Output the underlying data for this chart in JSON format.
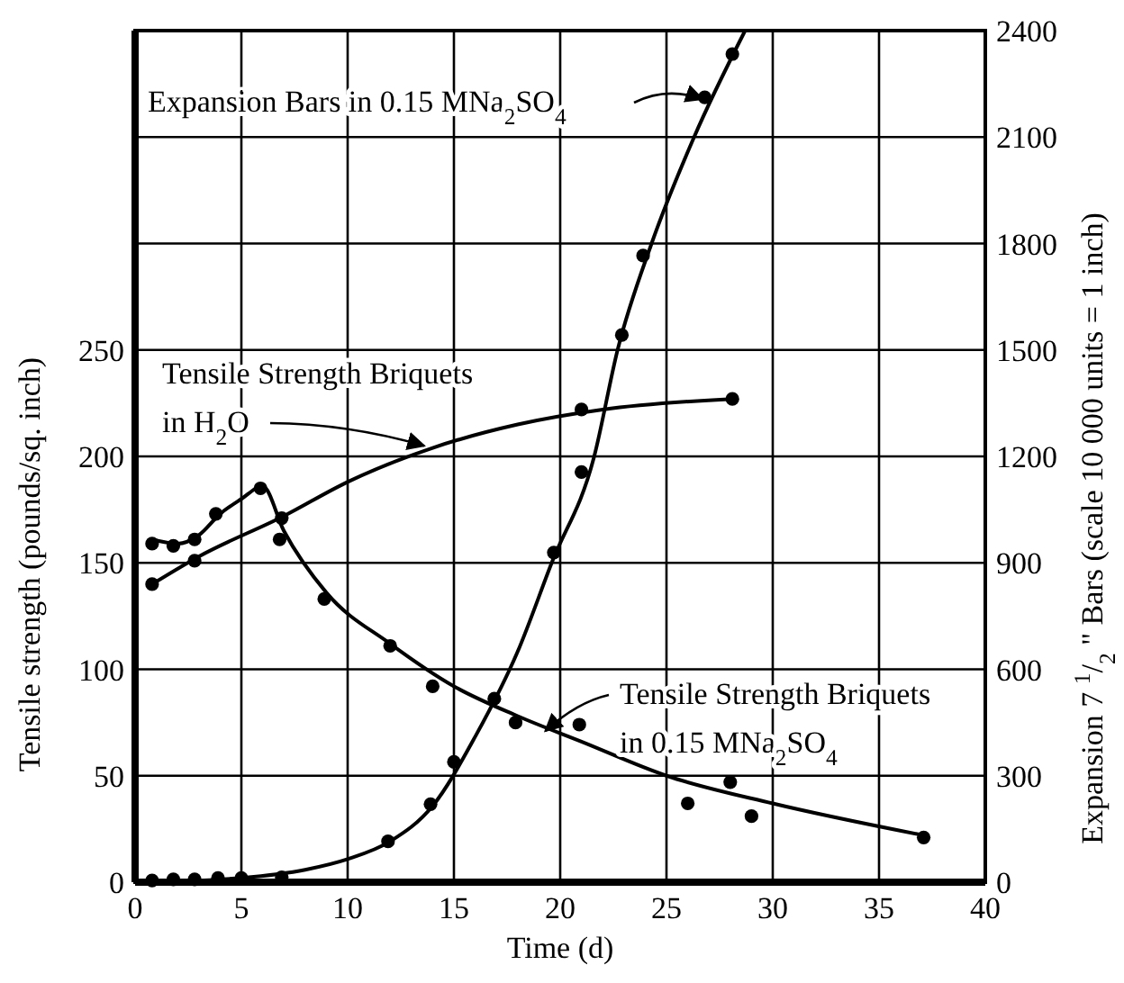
{
  "chart_data": {
    "type": "line",
    "xlabel": "Time (d)",
    "ylabel": "Tensile strength (pounds/sq. inch)",
    "y2label": "Expansion 7 $^{1}$/$_{2}$ \" Bars (scale 10 000 units = 1 inch)",
    "xlim": [
      0,
      40
    ],
    "xticks": [
      0,
      5,
      10,
      15,
      20,
      25,
      30,
      35,
      40
    ],
    "ylim": [
      0,
      400
    ],
    "yticks": [
      0,
      50,
      100,
      150,
      200,
      250,
      {
        "value": 300,
        "label": null
      },
      {
        "value": 350,
        "label": null
      },
      {
        "value": 400,
        "label": null
      }
    ],
    "y2lim": [
      0,
      2400
    ],
    "y2ticks": [
      0,
      300,
      600,
      900,
      1200,
      1500,
      1800,
      2100,
      2400
    ],
    "grid": true,
    "series": [
      {
        "type": "scatter",
        "marker": "circle",
        "color": "#000000",
        "x": [
          0.8,
          1.8,
          2.8,
          3.8,
          5.9,
          6.8,
          8.9,
          12,
          14,
          17.9,
          20.9,
          26,
          28,
          29,
          37.1
        ],
        "values": [
          159,
          158,
          161,
          173,
          185,
          161,
          133,
          111,
          92,
          75,
          74,
          37,
          47,
          31,
          21
        ]
      },
      {
        "type": "line",
        "marker": "none",
        "color": "#000000",
        "x": [
          0.8,
          2,
          3,
          4,
          5,
          6,
          7,
          9,
          12,
          15,
          18,
          21,
          25,
          30,
          37.1
        ],
        "values": [
          161,
          159,
          163,
          173,
          180,
          186,
          165,
          136,
          112,
          92,
          78,
          66,
          50,
          37,
          22
        ]
      },
      {
        "type": "scatter",
        "marker": "circle",
        "color": "#000000",
        "x": [
          0.8,
          2.8,
          6.9,
          21,
          28.1
        ],
        "values": [
          140,
          151,
          171,
          222,
          227
        ]
      },
      {
        "type": "line",
        "marker": "none",
        "color": "#000000",
        "x": [
          0.8,
          3,
          7,
          10,
          14,
          18,
          22,
          28.1
        ],
        "values": [
          140,
          153,
          172,
          188,
          204,
          215,
          222,
          227
        ]
      },
      {
        "type": "scatter",
        "marker": "circle",
        "axis": "y2",
        "color": "#000000",
        "x": [
          0.8,
          1.8,
          2.8,
          3.9,
          5,
          6.9,
          11.9,
          13.9,
          15,
          16.9,
          19.7,
          21,
          22.9,
          23.9,
          26.8,
          28.1
        ],
        "values": [
          5,
          8,
          8,
          12,
          12,
          14,
          115,
          220,
          339,
          517,
          929,
          1156,
          1542,
          1766,
          2212,
          2334
        ]
      },
      {
        "type": "line",
        "marker": "none",
        "axis": "y2",
        "color": "#000000",
        "x": [
          0.5,
          5,
          8,
          10,
          12,
          14,
          16,
          18,
          19.6,
          21.6,
          22.7,
          24.3,
          26.3,
          28.7
        ],
        "values": [
          0,
          12,
          35,
          65,
          115,
          215,
          410,
          650,
          900,
          1200,
          1500,
          1800,
          2100,
          2400
        ]
      }
    ],
    "annotations": [
      "Expansion Bars in 0.15 MNa$_{2}$SO$_{4}$",
      {
        "text": "Tensile Strength Briquets\nin H$_{2}$O",
        "x": 13.6,
        "y": 205
      },
      {
        "text": "Tensile Strength Briquets\nin 0.15 MNa$_{2}$SO$_{4}$",
        "x": 19.3,
        "y": 71
      }
    ]
  }
}
